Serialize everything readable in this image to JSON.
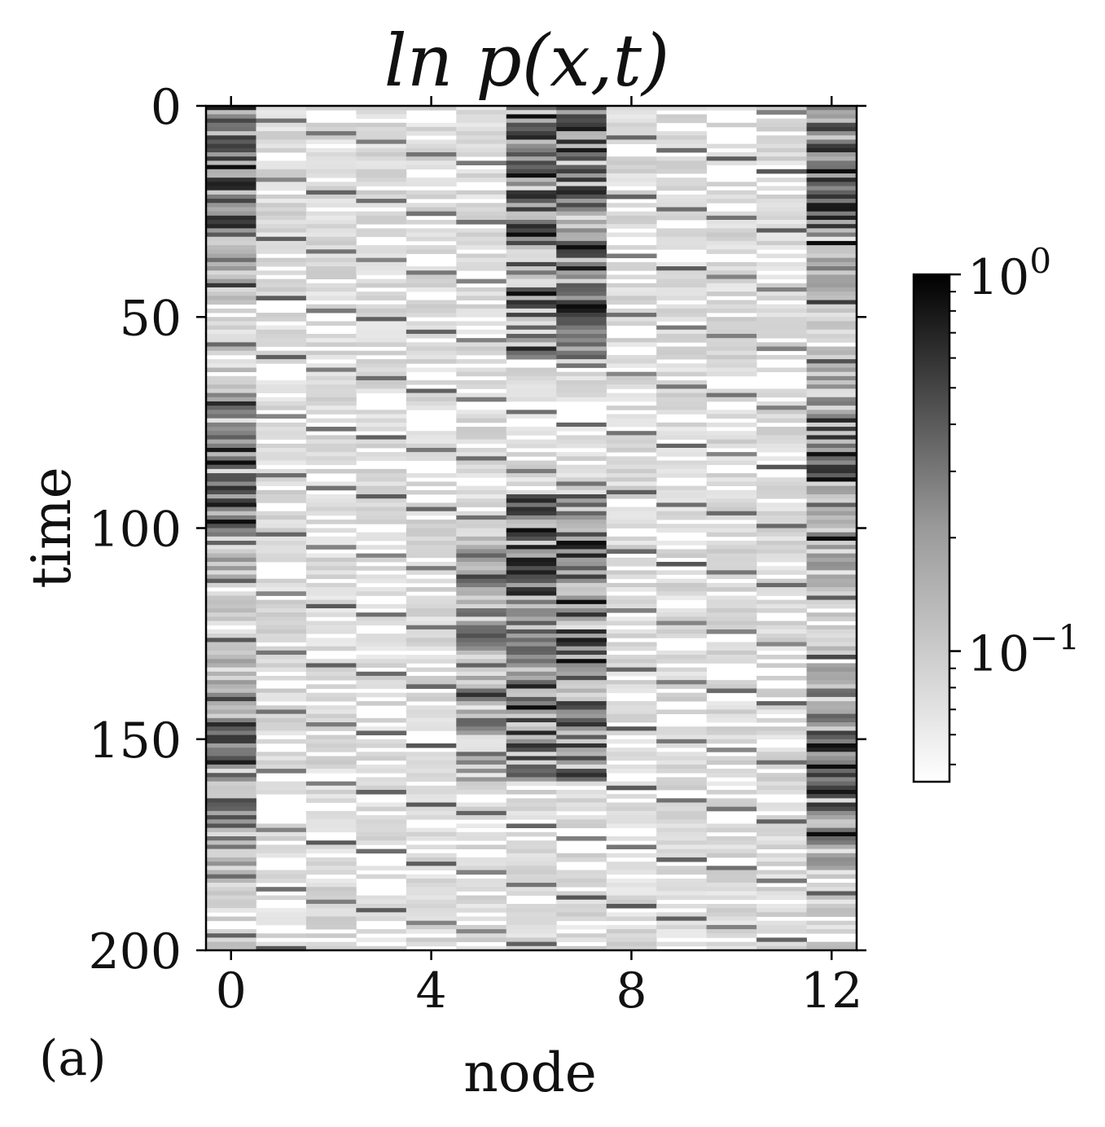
{
  "chart_data": {
    "type": "heatmap",
    "title": "ln p(x,t)",
    "xlabel": "node",
    "ylabel": "time",
    "panel_label": "(a)",
    "x_range": [
      -0.5,
      12.5
    ],
    "y_range": [
      0,
      200
    ],
    "y_inverted": true,
    "nodes": [
      0,
      1,
      2,
      3,
      4,
      5,
      6,
      7,
      8,
      9,
      10,
      11,
      12
    ],
    "x_ticks": [
      {
        "value": 0,
        "label": "0"
      },
      {
        "value": 4,
        "label": "4"
      },
      {
        "value": 8,
        "label": "8"
      },
      {
        "value": 12,
        "label": "12"
      }
    ],
    "y_ticks": [
      {
        "value": 0,
        "label": "0"
      },
      {
        "value": 50,
        "label": "50"
      },
      {
        "value": 100,
        "label": "100"
      },
      {
        "value": 150,
        "label": "150"
      },
      {
        "value": 200,
        "label": "200"
      }
    ],
    "colorbar": {
      "scale": "log",
      "range": [
        0.045,
        1.0
      ],
      "colormap": "Greys",
      "ticks": [
        {
          "value": 1.0,
          "base": "10",
          "exponent": "0"
        },
        {
          "value": 0.1,
          "base": "10",
          "exponent": "−1"
        }
      ]
    },
    "time_steps": 200,
    "band_model_note": "",
    "colors": {
      "low": "#ffffff",
      "high": "#000000",
      "axis": "#000000"
    },
    "grid": false
  }
}
